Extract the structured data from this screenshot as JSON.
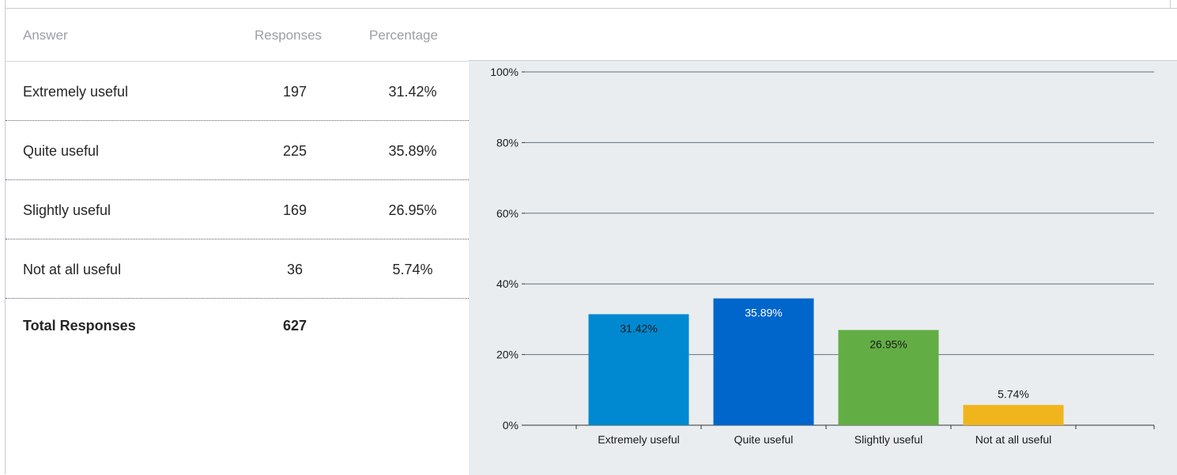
{
  "table": {
    "headers": {
      "answer": "Answer",
      "responses": "Responses",
      "percentage": "Percentage"
    },
    "rows": [
      {
        "answer": "Extremely useful",
        "responses": "197",
        "percentage": "31.42%"
      },
      {
        "answer": "Quite useful",
        "responses": "225",
        "percentage": "35.89%"
      },
      {
        "answer": "Slightly useful",
        "responses": "169",
        "percentage": "26.95%"
      },
      {
        "answer": "Not at all useful",
        "responses": "36",
        "percentage": "5.74%"
      }
    ],
    "total": {
      "label": "Total Responses",
      "value": "627"
    }
  },
  "chart_data": {
    "type": "bar",
    "categories": [
      "Extremely useful",
      "Quite useful",
      "Slightly useful",
      "Not at all useful"
    ],
    "values": [
      31.42,
      35.89,
      26.95,
      5.74
    ],
    "data_labels": [
      "31.42%",
      "35.89%",
      "26.95%",
      "5.74%"
    ],
    "ylim": [
      0,
      100
    ],
    "yticks": [
      "0%",
      "20%",
      "40%",
      "60%",
      "80%",
      "100%"
    ],
    "colors": [
      "#0089d1",
      "#0066cc",
      "#63ad45",
      "#f0b41d"
    ],
    "label_colors": [
      "#1a1a1a",
      "#ffffff",
      "#1a1a1a",
      "#1a1a1a"
    ],
    "grid": true,
    "legend": "none"
  }
}
